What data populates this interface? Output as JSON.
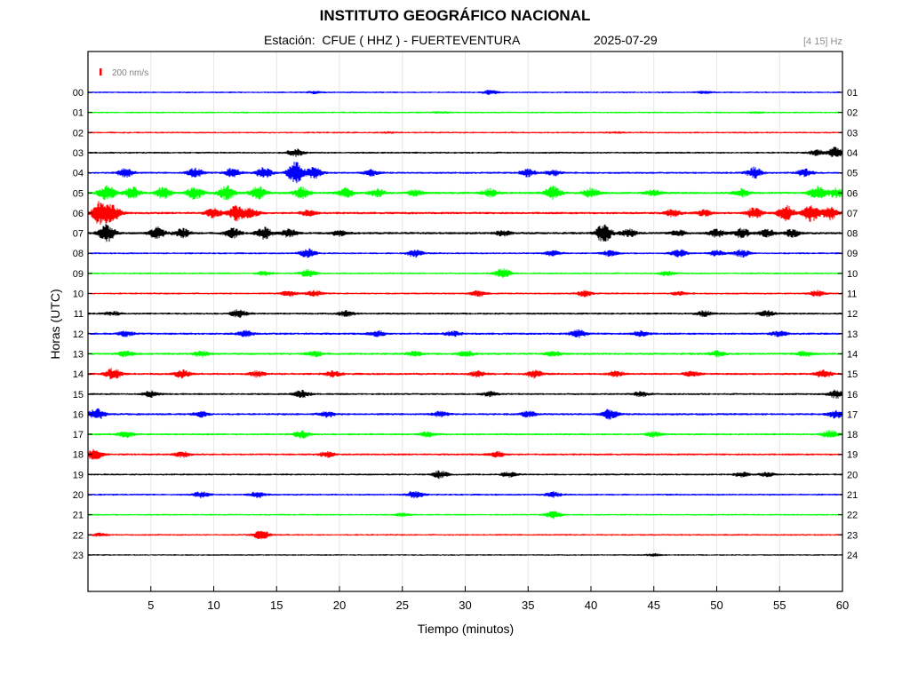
{
  "header": {
    "title": "INSTITUTO GEOGRÁFICO NACIONAL",
    "station_label": "Estación:",
    "station": "CFUE ( HHZ ) - FUERTEVENTURA",
    "date": "2025-07-29",
    "filter": "[4 15] Hz"
  },
  "chart_data": {
    "type": "line",
    "title": "INSTITUTO GEOGRÁFICO NACIONAL",
    "xlabel": "Tiempo (minutos)",
    "ylabel": "Horas (UTC)",
    "xlim": [
      0,
      60
    ],
    "x_ticks": [
      5,
      10,
      15,
      20,
      25,
      30,
      35,
      40,
      45,
      50,
      55,
      60
    ],
    "left_ticks": [
      "00",
      "01",
      "02",
      "03",
      "04",
      "05",
      "06",
      "07",
      "08",
      "09",
      "10",
      "11",
      "12",
      "13",
      "14",
      "15",
      "16",
      "17",
      "18",
      "19",
      "20",
      "21",
      "22",
      "23"
    ],
    "right_ticks": [
      "01",
      "02",
      "03",
      "04",
      "05",
      "06",
      "07",
      "08",
      "09",
      "10",
      "11",
      "12",
      "13",
      "14",
      "15",
      "16",
      "17",
      "18",
      "19",
      "20",
      "21",
      "22",
      "23",
      "24"
    ],
    "scale_label": "200 nm/s",
    "grid": true,
    "color_cycle": [
      "#0000ff",
      "#00ff00",
      "#ff0000",
      "#000000"
    ],
    "series": [
      {
        "hour": "00",
        "color": "#0000ff",
        "base": 1,
        "events": [
          [
            32,
            2
          ],
          [
            18,
            1.2
          ],
          [
            49,
            1.1
          ]
        ]
      },
      {
        "hour": "01",
        "color": "#00ff00",
        "base": 1,
        "events": [
          [
            28,
            0.8
          ],
          [
            53,
            0.7
          ]
        ]
      },
      {
        "hour": "02",
        "color": "#ff0000",
        "base": 1,
        "events": [
          [
            24,
            0.6
          ],
          [
            42,
            0.6
          ]
        ]
      },
      {
        "hour": "03",
        "color": "#000000",
        "base": 1.1,
        "events": [
          [
            16.5,
            4
          ],
          [
            58,
            3
          ],
          [
            59.5,
            6
          ]
        ]
      },
      {
        "hour": "04",
        "color": "#0000ff",
        "base": 1.2,
        "events": [
          [
            16.5,
            12
          ],
          [
            3,
            5
          ],
          [
            8.5,
            5
          ],
          [
            11.5,
            5
          ],
          [
            14,
            6
          ],
          [
            18,
            6
          ],
          [
            22.5,
            3
          ],
          [
            35,
            4
          ],
          [
            37,
            3
          ],
          [
            53,
            6
          ],
          [
            57,
            4
          ]
        ]
      },
      {
        "hour": "05",
        "color": "#00ff00",
        "base": 1.4,
        "events": [
          [
            1.5,
            9
          ],
          [
            3.5,
            6
          ],
          [
            6,
            6
          ],
          [
            8.5,
            7
          ],
          [
            11,
            8
          ],
          [
            13.5,
            7
          ],
          [
            17,
            6
          ],
          [
            20.5,
            5
          ],
          [
            23,
            4
          ],
          [
            26,
            3
          ],
          [
            32,
            4
          ],
          [
            37,
            7
          ],
          [
            40,
            5
          ],
          [
            45,
            3
          ],
          [
            52,
            4
          ],
          [
            58,
            7
          ],
          [
            59.5,
            5
          ]
        ]
      },
      {
        "hour": "06",
        "color": "#ff0000",
        "base": 1.4,
        "events": [
          [
            1,
            14
          ],
          [
            2,
            8
          ],
          [
            10,
            5
          ],
          [
            11.8,
            8
          ],
          [
            13,
            5
          ],
          [
            17.5,
            3
          ],
          [
            46.5,
            4
          ],
          [
            49,
            3
          ],
          [
            53,
            6
          ],
          [
            55.5,
            8
          ],
          [
            57.5,
            9
          ],
          [
            59,
            7
          ]
        ]
      },
      {
        "hour": "07",
        "color": "#000000",
        "base": 1.4,
        "events": [
          [
            1.5,
            10
          ],
          [
            5.5,
            6
          ],
          [
            7.5,
            5
          ],
          [
            11.5,
            5
          ],
          [
            14,
            6
          ],
          [
            16,
            4
          ],
          [
            20,
            3
          ],
          [
            33,
            3
          ],
          [
            41,
            10
          ],
          [
            43,
            4
          ],
          [
            47,
            3
          ],
          [
            50,
            4
          ],
          [
            52,
            5
          ],
          [
            54,
            4
          ],
          [
            56,
            4
          ]
        ]
      },
      {
        "hour": "08",
        "color": "#0000ff",
        "base": 1.1,
        "events": [
          [
            17.5,
            5
          ],
          [
            26,
            4
          ],
          [
            37,
            3
          ],
          [
            41.5,
            3
          ],
          [
            47,
            4
          ],
          [
            50,
            3
          ],
          [
            52,
            4
          ]
        ]
      },
      {
        "hour": "09",
        "color": "#00ff00",
        "base": 1.1,
        "events": [
          [
            17.5,
            4
          ],
          [
            33,
            5
          ],
          [
            14,
            2
          ],
          [
            46,
            2
          ]
        ]
      },
      {
        "hour": "10",
        "color": "#ff0000",
        "base": 1.1,
        "events": [
          [
            16,
            3
          ],
          [
            18,
            3
          ],
          [
            31,
            3
          ],
          [
            39.5,
            3
          ],
          [
            58,
            3
          ],
          [
            47,
            2
          ]
        ]
      },
      {
        "hour": "11",
        "color": "#000000",
        "base": 1.2,
        "events": [
          [
            12,
            4
          ],
          [
            20.5,
            3
          ],
          [
            49,
            3
          ],
          [
            54,
            3
          ],
          [
            2,
            2
          ]
        ]
      },
      {
        "hour": "12",
        "color": "#0000ff",
        "base": 1.3,
        "events": [
          [
            3,
            3
          ],
          [
            12.5,
            3
          ],
          [
            23,
            3
          ],
          [
            29,
            2.5
          ],
          [
            39,
            4
          ],
          [
            44,
            3
          ],
          [
            55,
            3
          ]
        ]
      },
      {
        "hour": "13",
        "color": "#00ff00",
        "base": 1.3,
        "events": [
          [
            3,
            3
          ],
          [
            9,
            3
          ],
          [
            18,
            3
          ],
          [
            26,
            2.5
          ],
          [
            30,
            3
          ],
          [
            37,
            2.5
          ],
          [
            50,
            3
          ],
          [
            57,
            3
          ]
        ]
      },
      {
        "hour": "14",
        "color": "#ff0000",
        "base": 1.3,
        "events": [
          [
            2,
            6
          ],
          [
            7.5,
            4
          ],
          [
            13.5,
            3
          ],
          [
            19.5,
            3
          ],
          [
            31,
            3
          ],
          [
            35.5,
            4
          ],
          [
            42,
            3
          ],
          [
            48,
            3
          ],
          [
            58.5,
            4
          ]
        ]
      },
      {
        "hour": "15",
        "color": "#000000",
        "base": 1.2,
        "events": [
          [
            5,
            3
          ],
          [
            17,
            4
          ],
          [
            32,
            2.5
          ],
          [
            44,
            2.5
          ],
          [
            59.5,
            4
          ]
        ]
      },
      {
        "hour": "16",
        "color": "#0000ff",
        "base": 1.3,
        "events": [
          [
            0.7,
            6
          ],
          [
            9,
            3
          ],
          [
            19,
            3
          ],
          [
            28,
            2.5
          ],
          [
            35,
            3
          ],
          [
            41.5,
            5
          ],
          [
            59.5,
            4
          ]
        ]
      },
      {
        "hour": "17",
        "color": "#00ff00",
        "base": 1.2,
        "events": [
          [
            3,
            3
          ],
          [
            17,
            4
          ],
          [
            27,
            2.5
          ],
          [
            45,
            2.5
          ],
          [
            59,
            4
          ]
        ]
      },
      {
        "hour": "18",
        "color": "#ff0000",
        "base": 1.2,
        "events": [
          [
            0.5,
            6
          ],
          [
            7.5,
            3
          ],
          [
            19,
            3
          ],
          [
            32.5,
            3
          ]
        ]
      },
      {
        "hour": "19",
        "color": "#000000",
        "base": 1.1,
        "events": [
          [
            28,
            4
          ],
          [
            33.5,
            2.5
          ],
          [
            52,
            2.5
          ],
          [
            54,
            2
          ]
        ]
      },
      {
        "hour": "20",
        "color": "#0000ff",
        "base": 1.1,
        "events": [
          [
            9,
            3
          ],
          [
            13.5,
            3
          ],
          [
            26,
            4
          ],
          [
            37,
            3
          ]
        ]
      },
      {
        "hour": "21",
        "color": "#00ff00",
        "base": 1,
        "events": [
          [
            37,
            4
          ],
          [
            25,
            1.5
          ]
        ]
      },
      {
        "hour": "22",
        "color": "#ff0000",
        "base": 1,
        "events": [
          [
            13.8,
            5
          ],
          [
            1,
            1.5
          ]
        ]
      },
      {
        "hour": "23",
        "color": "#000000",
        "base": 0.9,
        "events": [
          [
            45,
            1.2
          ]
        ]
      }
    ]
  }
}
